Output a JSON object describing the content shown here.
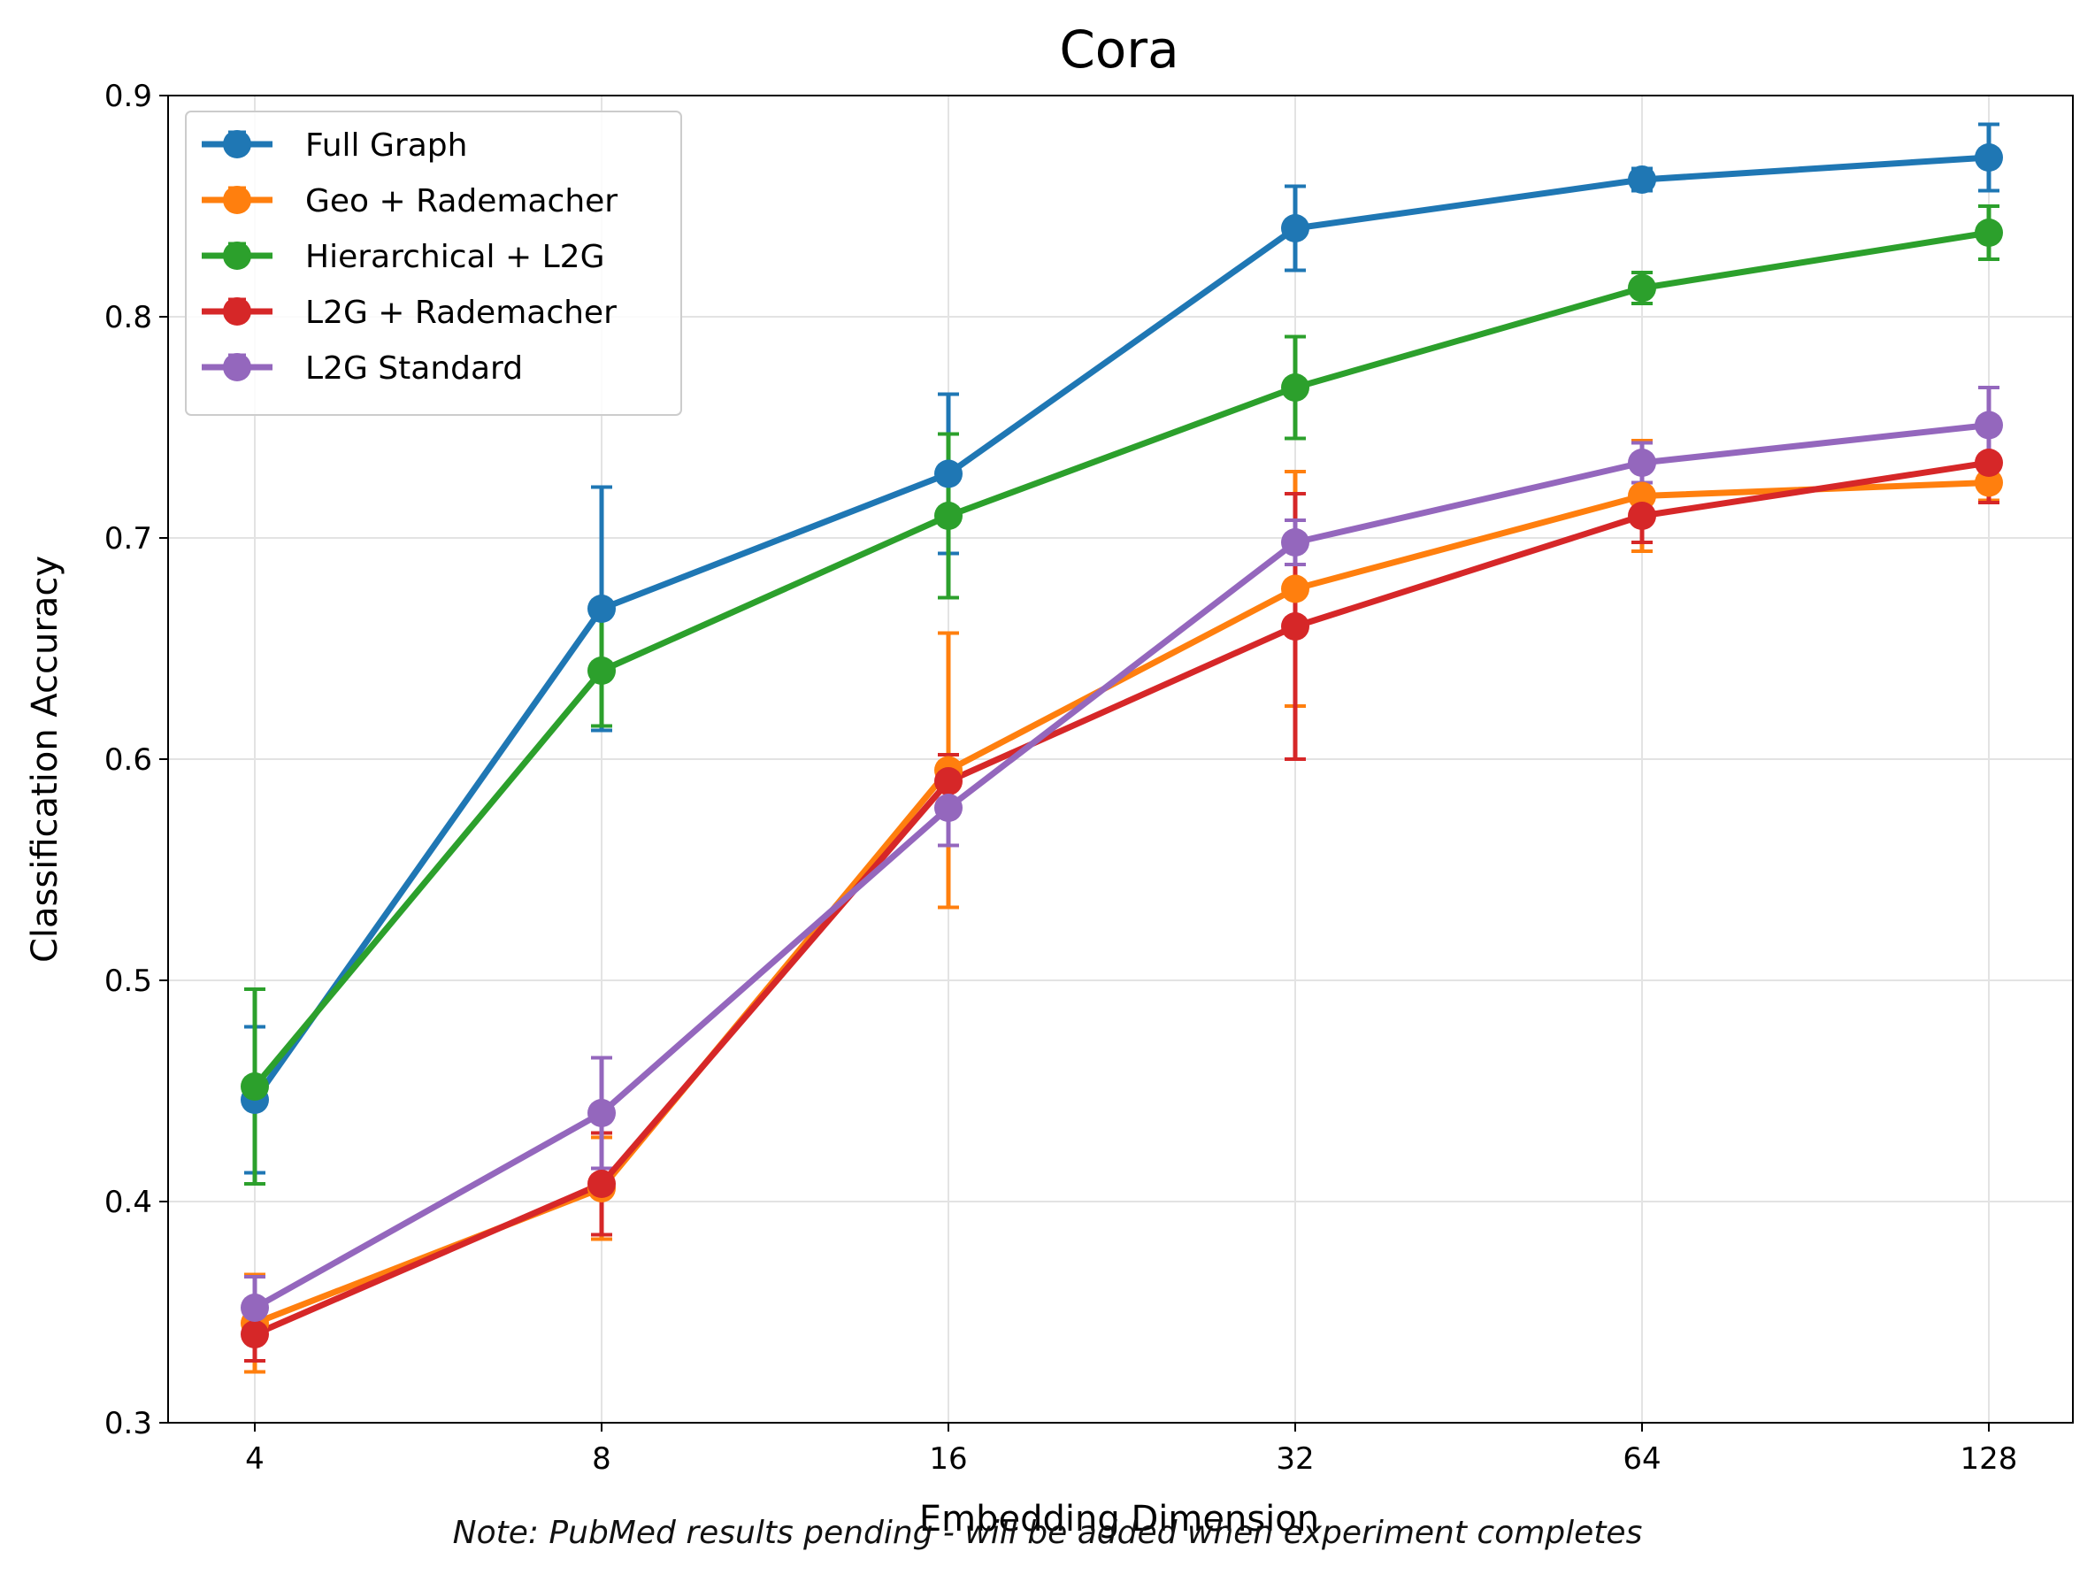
{
  "chart_data": {
    "type": "line",
    "title": "Cora",
    "xlabel": "Embedding Dimension",
    "ylabel": "Classification Accuracy",
    "x_scale": "log2",
    "categories": [
      "4",
      "8",
      "16",
      "32",
      "64",
      "128"
    ],
    "x": [
      4,
      8,
      16,
      32,
      64,
      128
    ],
    "ylim": [
      0.3,
      0.9
    ],
    "yticks": [
      "0.3",
      "0.4",
      "0.5",
      "0.6",
      "0.7",
      "0.8",
      "0.9"
    ],
    "grid": true,
    "legend_position": "top-left",
    "series": [
      {
        "name": "Full Graph",
        "color": "#1f77b4",
        "values": [
          0.446,
          0.668,
          0.729,
          0.84,
          0.862,
          0.872
        ],
        "errors": [
          0.033,
          0.055,
          0.036,
          0.019,
          0.005,
          0.015
        ]
      },
      {
        "name": "Geo + Rademacher",
        "color": "#ff7f0e",
        "values": [
          0.345,
          0.406,
          0.595,
          0.677,
          0.719,
          0.725
        ],
        "errors": [
          0.022,
          0.023,
          0.062,
          0.053,
          0.025,
          0.008
        ]
      },
      {
        "name": "Hierarchical + L2G",
        "color": "#2ca02c",
        "values": [
          0.452,
          0.64,
          0.71,
          0.768,
          0.813,
          0.838
        ],
        "errors": [
          0.044,
          0.025,
          0.037,
          0.023,
          0.007,
          0.012
        ]
      },
      {
        "name": "L2G + Rademacher",
        "color": "#d62728",
        "values": [
          0.34,
          0.408,
          0.59,
          0.66,
          0.71,
          0.734
        ],
        "errors": [
          0.012,
          0.023,
          0.012,
          0.06,
          0.012,
          0.018
        ]
      },
      {
        "name": "L2G Standard",
        "color": "#9467bd",
        "values": [
          0.352,
          0.44,
          0.578,
          0.698,
          0.734,
          0.751
        ],
        "errors": [
          0.014,
          0.025,
          0.017,
          0.01,
          0.009,
          0.017
        ]
      }
    ]
  },
  "note": "Note: PubMed results pending - will be added when experiment completes"
}
